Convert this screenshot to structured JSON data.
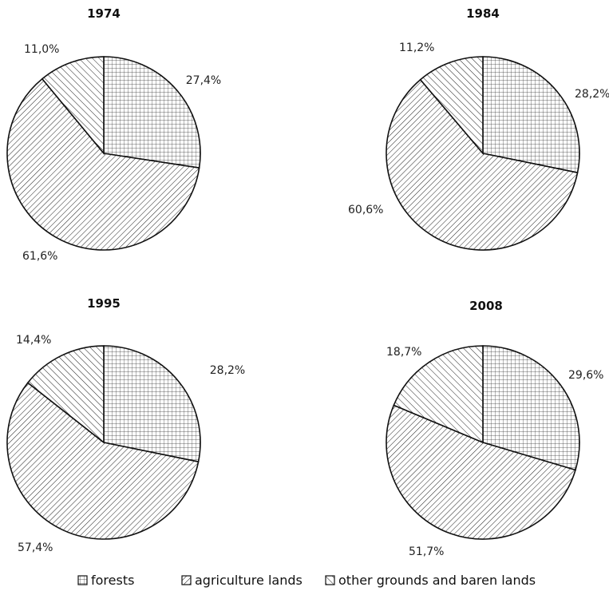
{
  "chart_data": [
    {
      "type": "pie",
      "title": "1974",
      "slices": [
        {
          "name": "forests",
          "value": 27.4,
          "label": "27,4%"
        },
        {
          "name": "agriculture lands",
          "value": 61.6,
          "label": "61,6%"
        },
        {
          "name": "other grounds and baren lands",
          "value": 11.0,
          "label": "11,0%"
        }
      ]
    },
    {
      "type": "pie",
      "title": "1984",
      "slices": [
        {
          "name": "forests",
          "value": 28.2,
          "label": "28,2%"
        },
        {
          "name": "agriculture lands",
          "value": 60.6,
          "label": "60,6%"
        },
        {
          "name": "other grounds and baren lands",
          "value": 11.2,
          "label": "11,2%"
        }
      ]
    },
    {
      "type": "pie",
      "title": "1995",
      "slices": [
        {
          "name": "forests",
          "value": 28.2,
          "label": "28,2%"
        },
        {
          "name": "agriculture lands",
          "value": 57.4,
          "label": "57,4%"
        },
        {
          "name": "other grounds and baren lands",
          "value": 14.4,
          "label": "14,4%"
        }
      ]
    },
    {
      "type": "pie",
      "title": "2008",
      "slices": [
        {
          "name": "forests",
          "value": 29.6,
          "label": "29,6%"
        },
        {
          "name": "agriculture lands",
          "value": 51.7,
          "label": "51,7%"
        },
        {
          "name": "other grounds and baren lands",
          "value": 18.7,
          "label": "18,7%"
        }
      ]
    }
  ],
  "legend": {
    "position": "bottom",
    "items": [
      {
        "name": "forests",
        "pattern": "grid"
      },
      {
        "name": "agriculture lands",
        "pattern": "diagonal-dense"
      },
      {
        "name": "other grounds and baren lands",
        "pattern": "diagonal-sparse"
      }
    ]
  }
}
